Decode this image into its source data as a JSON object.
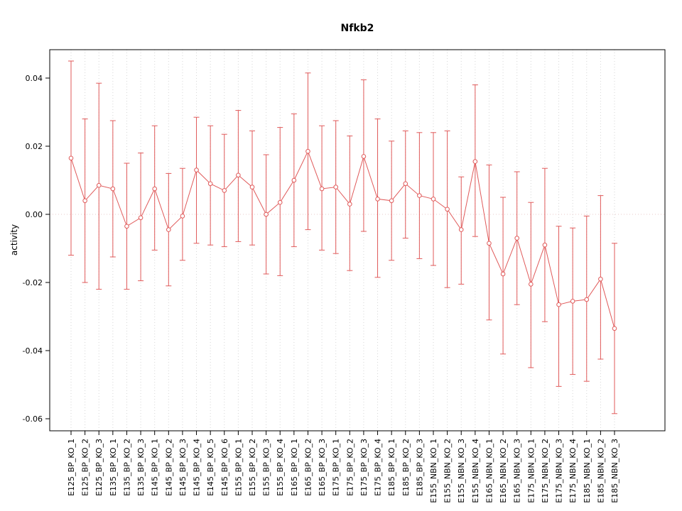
{
  "chart_data": {
    "type": "line",
    "title": "Nfkb2",
    "ylabel": "activity",
    "xlabel": "",
    "ylim": [
      -0.063,
      0.0485
    ],
    "yticks": [
      0.04,
      0.02,
      0,
      -0.02,
      -0.04,
      -0.06
    ],
    "ytick_labels": [
      "0.04",
      "0.02",
      "0.00",
      "-0.02",
      "-0.04",
      "-0.06"
    ],
    "grid": {
      "vertical": "dotted-per-category",
      "horizontal_zero_line": true
    },
    "legend": "none",
    "point_style": "open-circle",
    "error_bars": true,
    "colors": {
      "series": "#e05a5a",
      "grid": "#d6d6d6",
      "zero_line": "#e9caca",
      "axis": "#000000",
      "background": "#ffffff"
    },
    "categories": [
      "E125_BP_KO_1",
      "E125_BP_KO_2",
      "E125_BP_KO_3",
      "E135_BP_KO_1",
      "E135_BP_KO_2",
      "E135_BP_KO_3",
      "E145_BP_KO_1",
      "E145_BP_KO_2",
      "E145_BP_KO_3",
      "E145_BP_KO_4",
      "E145_BP_KO_5",
      "E145_BP_KO_6",
      "E155_BP_KO_1",
      "E155_BP_KO_2",
      "E155_BP_KO_3",
      "E155_BP_KO_4",
      "E165_BP_KO_1",
      "E165_BP_KO_2",
      "E165_BP_KO_3",
      "E175_BP_KO_1",
      "E175_BP_KO_2",
      "E175_BP_KO_3",
      "E175_BP_KO_4",
      "E185_BP_KO_1",
      "E185_BP_KO_2",
      "E185_BP_KO_3",
      "E155_NBN_KO_1",
      "E155_NBN_KO_2",
      "E155_NBN_KO_3",
      "E155_NBN_KO_4",
      "E165_NBN_KO_1",
      "E165_NBN_KO_2",
      "E165_NBN_KO_3",
      "E175_NBN_KO_1",
      "E175_NBN_KO_2",
      "E175_NBN_KO_3",
      "E175_NBN_KO_4",
      "E185_NBN_KO_1",
      "E185_NBN_KO_2",
      "E185_NBN_KO_3"
    ],
    "series": [
      {
        "name": "Nfkb2 activity",
        "values": [
          0.0165,
          0.004,
          0.0085,
          0.0075,
          -0.0035,
          -0.001,
          0.0075,
          -0.0045,
          -0.0005,
          0.013,
          0.009,
          0.007,
          0.0115,
          0.008,
          0.0,
          0.0035,
          0.01,
          0.0185,
          0.0075,
          0.008,
          0.003,
          0.017,
          0.0045,
          0.004,
          0.009,
          0.0055,
          0.0045,
          0.0015,
          -0.0045,
          0.0155,
          -0.0085,
          -0.0175,
          -0.007,
          -0.0205,
          -0.009,
          -0.0265,
          -0.0255,
          -0.025,
          -0.019,
          -0.0335
        ],
        "upper": [
          0.045,
          0.028,
          0.0385,
          0.0275,
          0.015,
          0.018,
          0.026,
          0.012,
          0.0135,
          0.0285,
          0.026,
          0.0235,
          0.0305,
          0.0245,
          0.0175,
          0.0255,
          0.0295,
          0.0415,
          0.026,
          0.0275,
          0.023,
          0.0395,
          0.028,
          0.0215,
          0.0245,
          0.024,
          0.024,
          0.0245,
          0.011,
          0.038,
          0.0145,
          0.005,
          0.0125,
          0.0035,
          0.0135,
          -0.0035,
          -0.004,
          -0.0005,
          0.0055,
          -0.0085
        ],
        "lower": [
          -0.012,
          -0.02,
          -0.022,
          -0.0125,
          -0.022,
          -0.0195,
          -0.0105,
          -0.021,
          -0.0135,
          -0.0085,
          -0.009,
          -0.0095,
          -0.008,
          -0.009,
          -0.0175,
          -0.018,
          -0.0095,
          -0.0045,
          -0.0105,
          -0.0115,
          -0.0165,
          -0.005,
          -0.0185,
          -0.0135,
          -0.007,
          -0.013,
          -0.015,
          -0.0215,
          -0.0205,
          -0.0065,
          -0.031,
          -0.041,
          -0.0265,
          -0.045,
          -0.0315,
          -0.0505,
          -0.047,
          -0.049,
          -0.0425,
          -0.0585
        ]
      }
    ]
  }
}
